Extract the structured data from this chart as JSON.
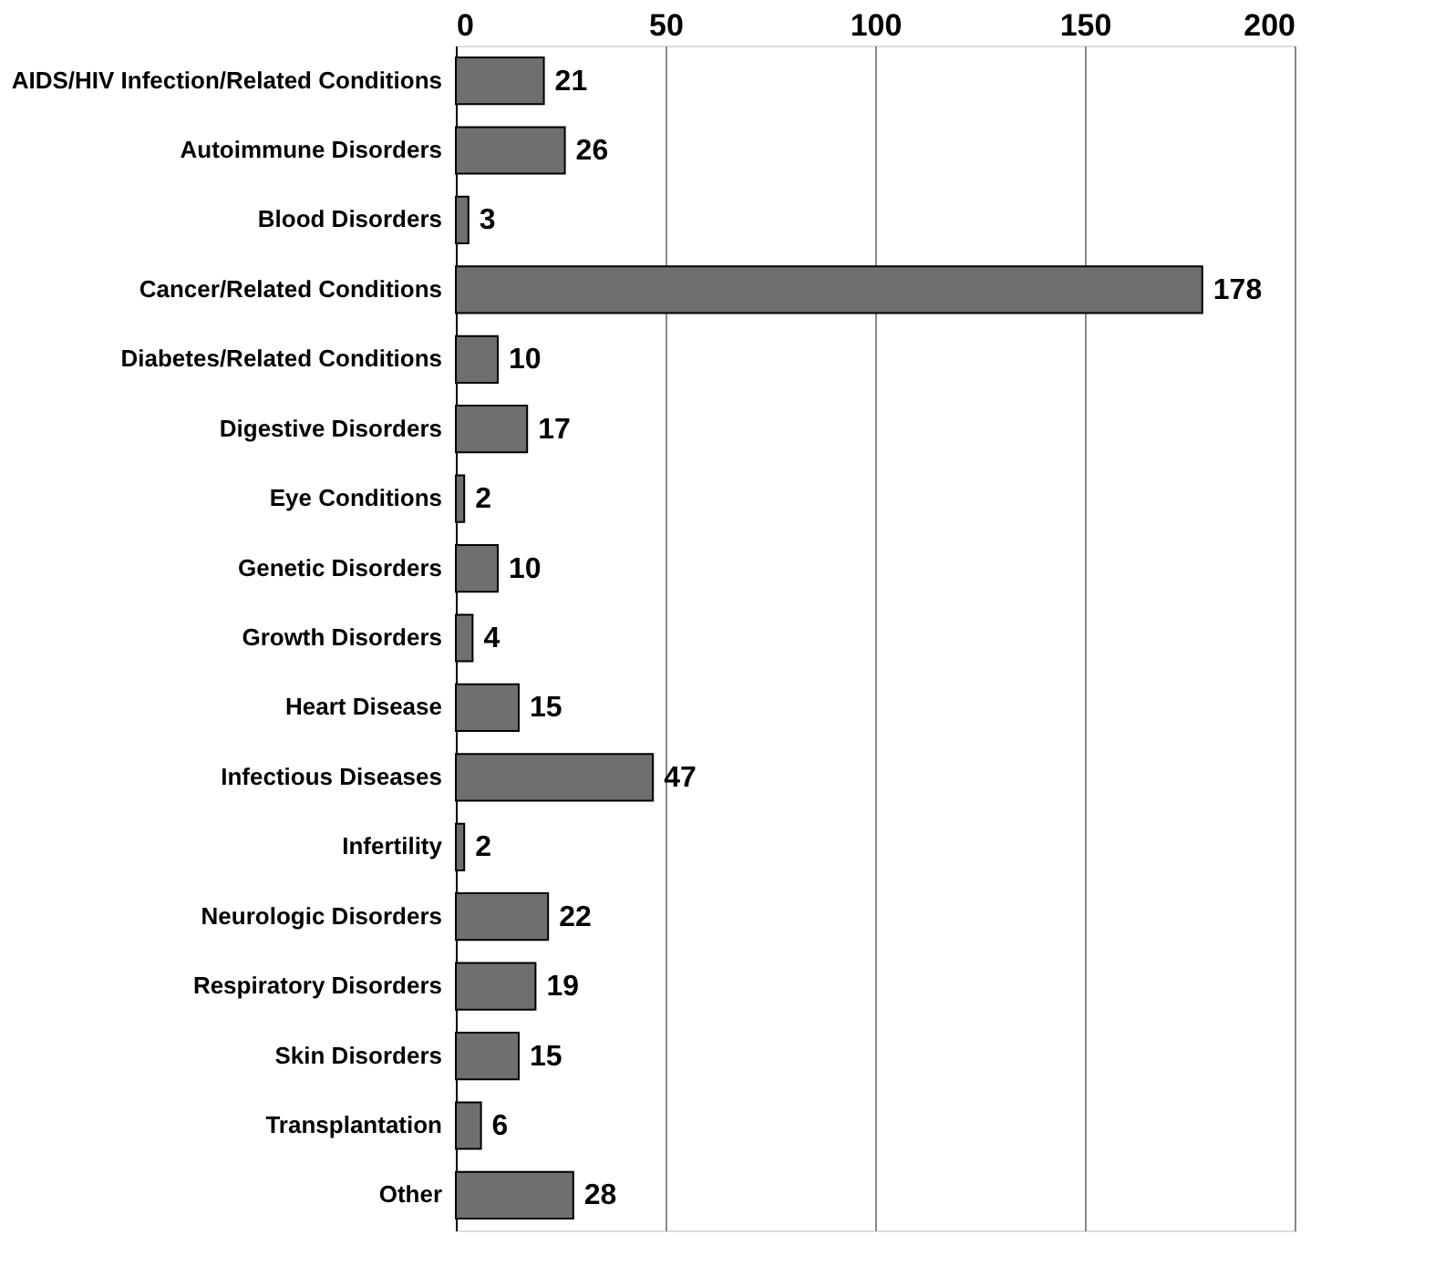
{
  "chart_data": {
    "type": "bar",
    "orientation": "horizontal",
    "categories": [
      "AIDS/HIV Infection/Related Conditions",
      "Autoimmune Disorders",
      "Blood Disorders",
      "Cancer/Related Conditions",
      "Diabetes/Related Conditions",
      "Digestive Disorders",
      "Eye Conditions",
      "Genetic Disorders",
      "Growth Disorders",
      "Heart Disease",
      "Infectious Diseases",
      "Infertility",
      "Neurologic Disorders",
      "Respiratory Disorders",
      "Skin Disorders",
      "Transplantation",
      "Other"
    ],
    "values": [
      21,
      26,
      3,
      178,
      10,
      17,
      2,
      10,
      4,
      15,
      47,
      2,
      22,
      19,
      15,
      6,
      28
    ],
    "color": "#6f6f6f",
    "xlim": [
      0,
      200
    ],
    "xticks": [
      0,
      50,
      100,
      150,
      200
    ],
    "grid": "x",
    "data_labels": true
  }
}
